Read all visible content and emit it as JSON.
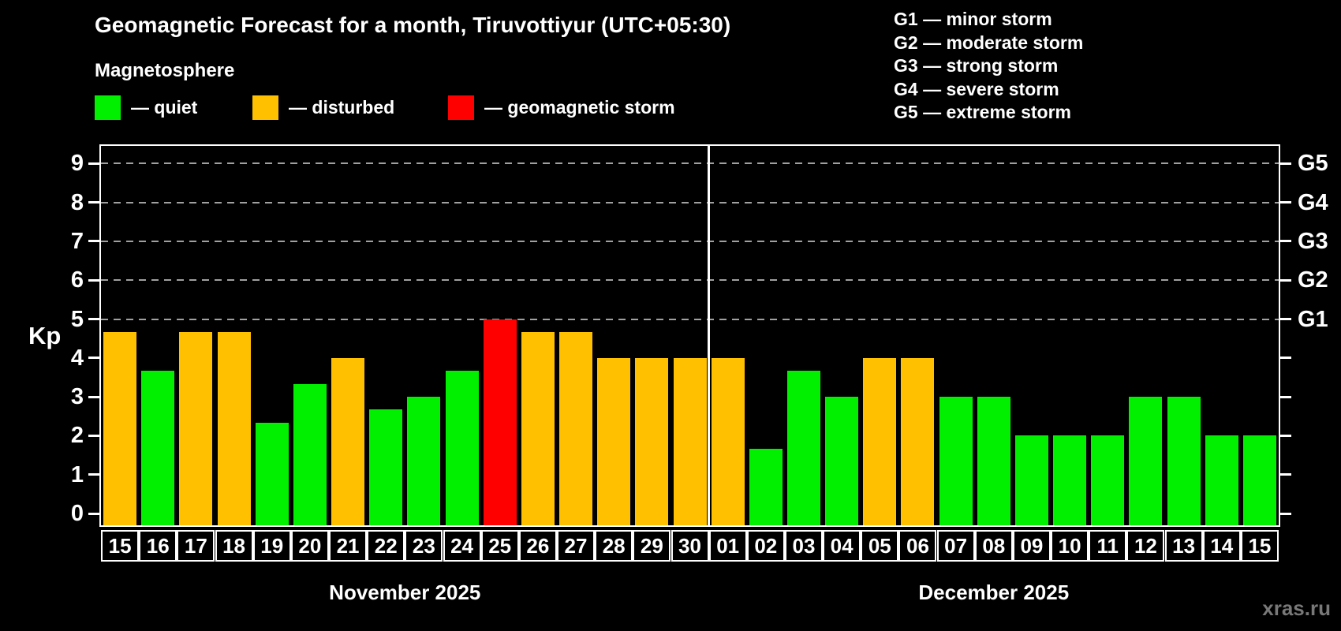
{
  "title": "Geomagnetic Forecast for a month, Tiruvottiyur (UTC+05:30)",
  "subtitle": "Magnetosphere",
  "legend": {
    "items": [
      {
        "state": "quiet",
        "label": "— quiet",
        "color": "#00f000"
      },
      {
        "state": "disturbed",
        "label": "— disturbed",
        "color": "#ffc000"
      },
      {
        "state": "storm",
        "label": "— geomagnetic storm",
        "color": "#ff0000"
      }
    ]
  },
  "g_scale_legend": [
    "G1 — minor storm",
    "G2 — moderate storm",
    "G3 — strong storm",
    "G4 — severe storm",
    "G5 — extreme storm"
  ],
  "watermark": "xras.ru",
  "chart_data": {
    "type": "bar",
    "title": "Geomagnetic Forecast for a month, Tiruvottiyur (UTC+05:30)",
    "ylabel": "Kp",
    "ylim": [
      0,
      9.5
    ],
    "yticks": [
      0,
      1,
      2,
      3,
      4,
      5,
      6,
      7,
      8,
      9
    ],
    "gridlines_at": [
      5,
      6,
      7,
      8,
      9
    ],
    "right_axis_labels": [
      {
        "kp": 5,
        "label": "G1"
      },
      {
        "kp": 6,
        "label": "G2"
      },
      {
        "kp": 7,
        "label": "G3"
      },
      {
        "kp": 8,
        "label": "G4"
      },
      {
        "kp": 9,
        "label": "G5"
      }
    ],
    "months": [
      {
        "label": "November 2025",
        "days": 16
      },
      {
        "label": "December 2025",
        "days": 15
      }
    ],
    "categories": [
      "15",
      "16",
      "17",
      "18",
      "19",
      "20",
      "21",
      "22",
      "23",
      "24",
      "25",
      "26",
      "27",
      "28",
      "29",
      "30",
      "01",
      "02",
      "03",
      "04",
      "05",
      "06",
      "07",
      "08",
      "09",
      "10",
      "11",
      "12",
      "13",
      "14",
      "15"
    ],
    "values": [
      4.67,
      3.67,
      4.67,
      4.67,
      2.33,
      3.33,
      4,
      2.67,
      3,
      3.67,
      5,
      4.67,
      4.67,
      4,
      4,
      4,
      4,
      1.67,
      3.67,
      3,
      4,
      4,
      3,
      3,
      2,
      2,
      2,
      3,
      3,
      2,
      2
    ],
    "states": [
      "disturbed",
      "quiet",
      "disturbed",
      "disturbed",
      "quiet",
      "quiet",
      "disturbed",
      "quiet",
      "quiet",
      "quiet",
      "storm",
      "disturbed",
      "disturbed",
      "disturbed",
      "disturbed",
      "disturbed",
      "disturbed",
      "quiet",
      "quiet",
      "quiet",
      "disturbed",
      "disturbed",
      "quiet",
      "quiet",
      "quiet",
      "quiet",
      "quiet",
      "quiet",
      "quiet",
      "quiet",
      "quiet"
    ],
    "colors": {
      "quiet": "#00f000",
      "disturbed": "#ffc000",
      "storm": "#ff0000"
    },
    "legend_position": "top-left",
    "grid": "dashed gray horizontal lines at Kp 5-9 only"
  }
}
